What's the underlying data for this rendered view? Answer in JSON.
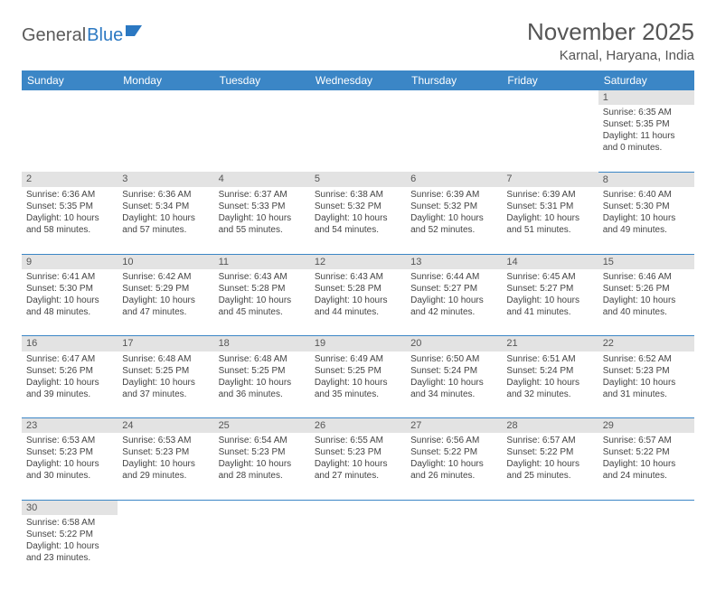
{
  "logo": {
    "part1": "General",
    "part2": "Blue"
  },
  "title": "November 2025",
  "location": "Karnal, Haryana, India",
  "colors": {
    "header_bg": "#3b86c6",
    "header_text": "#ffffff",
    "daynum_bg": "#e3e3e3",
    "cell_border": "#3b86c6",
    "text": "#444444",
    "logo_gray": "#5a5a5a",
    "logo_blue": "#2b78c2"
  },
  "typography": {
    "title_fontsize": 26,
    "location_fontsize": 15,
    "dayheader_fontsize": 12,
    "cell_fontsize": 10
  },
  "day_headers": [
    "Sunday",
    "Monday",
    "Tuesday",
    "Wednesday",
    "Thursday",
    "Friday",
    "Saturday"
  ],
  "weeks": [
    [
      null,
      null,
      null,
      null,
      null,
      null,
      {
        "n": "1",
        "sr": "Sunrise: 6:35 AM",
        "ss": "Sunset: 5:35 PM",
        "dl": "Daylight: 11 hours and 0 minutes."
      }
    ],
    [
      {
        "n": "2",
        "sr": "Sunrise: 6:36 AM",
        "ss": "Sunset: 5:35 PM",
        "dl": "Daylight: 10 hours and 58 minutes."
      },
      {
        "n": "3",
        "sr": "Sunrise: 6:36 AM",
        "ss": "Sunset: 5:34 PM",
        "dl": "Daylight: 10 hours and 57 minutes."
      },
      {
        "n": "4",
        "sr": "Sunrise: 6:37 AM",
        "ss": "Sunset: 5:33 PM",
        "dl": "Daylight: 10 hours and 55 minutes."
      },
      {
        "n": "5",
        "sr": "Sunrise: 6:38 AM",
        "ss": "Sunset: 5:32 PM",
        "dl": "Daylight: 10 hours and 54 minutes."
      },
      {
        "n": "6",
        "sr": "Sunrise: 6:39 AM",
        "ss": "Sunset: 5:32 PM",
        "dl": "Daylight: 10 hours and 52 minutes."
      },
      {
        "n": "7",
        "sr": "Sunrise: 6:39 AM",
        "ss": "Sunset: 5:31 PM",
        "dl": "Daylight: 10 hours and 51 minutes."
      },
      {
        "n": "8",
        "sr": "Sunrise: 6:40 AM",
        "ss": "Sunset: 5:30 PM",
        "dl": "Daylight: 10 hours and 49 minutes."
      }
    ],
    [
      {
        "n": "9",
        "sr": "Sunrise: 6:41 AM",
        "ss": "Sunset: 5:30 PM",
        "dl": "Daylight: 10 hours and 48 minutes."
      },
      {
        "n": "10",
        "sr": "Sunrise: 6:42 AM",
        "ss": "Sunset: 5:29 PM",
        "dl": "Daylight: 10 hours and 47 minutes."
      },
      {
        "n": "11",
        "sr": "Sunrise: 6:43 AM",
        "ss": "Sunset: 5:28 PM",
        "dl": "Daylight: 10 hours and 45 minutes."
      },
      {
        "n": "12",
        "sr": "Sunrise: 6:43 AM",
        "ss": "Sunset: 5:28 PM",
        "dl": "Daylight: 10 hours and 44 minutes."
      },
      {
        "n": "13",
        "sr": "Sunrise: 6:44 AM",
        "ss": "Sunset: 5:27 PM",
        "dl": "Daylight: 10 hours and 42 minutes."
      },
      {
        "n": "14",
        "sr": "Sunrise: 6:45 AM",
        "ss": "Sunset: 5:27 PM",
        "dl": "Daylight: 10 hours and 41 minutes."
      },
      {
        "n": "15",
        "sr": "Sunrise: 6:46 AM",
        "ss": "Sunset: 5:26 PM",
        "dl": "Daylight: 10 hours and 40 minutes."
      }
    ],
    [
      {
        "n": "16",
        "sr": "Sunrise: 6:47 AM",
        "ss": "Sunset: 5:26 PM",
        "dl": "Daylight: 10 hours and 39 minutes."
      },
      {
        "n": "17",
        "sr": "Sunrise: 6:48 AM",
        "ss": "Sunset: 5:25 PM",
        "dl": "Daylight: 10 hours and 37 minutes."
      },
      {
        "n": "18",
        "sr": "Sunrise: 6:48 AM",
        "ss": "Sunset: 5:25 PM",
        "dl": "Daylight: 10 hours and 36 minutes."
      },
      {
        "n": "19",
        "sr": "Sunrise: 6:49 AM",
        "ss": "Sunset: 5:25 PM",
        "dl": "Daylight: 10 hours and 35 minutes."
      },
      {
        "n": "20",
        "sr": "Sunrise: 6:50 AM",
        "ss": "Sunset: 5:24 PM",
        "dl": "Daylight: 10 hours and 34 minutes."
      },
      {
        "n": "21",
        "sr": "Sunrise: 6:51 AM",
        "ss": "Sunset: 5:24 PM",
        "dl": "Daylight: 10 hours and 32 minutes."
      },
      {
        "n": "22",
        "sr": "Sunrise: 6:52 AM",
        "ss": "Sunset: 5:23 PM",
        "dl": "Daylight: 10 hours and 31 minutes."
      }
    ],
    [
      {
        "n": "23",
        "sr": "Sunrise: 6:53 AM",
        "ss": "Sunset: 5:23 PM",
        "dl": "Daylight: 10 hours and 30 minutes."
      },
      {
        "n": "24",
        "sr": "Sunrise: 6:53 AM",
        "ss": "Sunset: 5:23 PM",
        "dl": "Daylight: 10 hours and 29 minutes."
      },
      {
        "n": "25",
        "sr": "Sunrise: 6:54 AM",
        "ss": "Sunset: 5:23 PM",
        "dl": "Daylight: 10 hours and 28 minutes."
      },
      {
        "n": "26",
        "sr": "Sunrise: 6:55 AM",
        "ss": "Sunset: 5:23 PM",
        "dl": "Daylight: 10 hours and 27 minutes."
      },
      {
        "n": "27",
        "sr": "Sunrise: 6:56 AM",
        "ss": "Sunset: 5:22 PM",
        "dl": "Daylight: 10 hours and 26 minutes."
      },
      {
        "n": "28",
        "sr": "Sunrise: 6:57 AM",
        "ss": "Sunset: 5:22 PM",
        "dl": "Daylight: 10 hours and 25 minutes."
      },
      {
        "n": "29",
        "sr": "Sunrise: 6:57 AM",
        "ss": "Sunset: 5:22 PM",
        "dl": "Daylight: 10 hours and 24 minutes."
      }
    ],
    [
      {
        "n": "30",
        "sr": "Sunrise: 6:58 AM",
        "ss": "Sunset: 5:22 PM",
        "dl": "Daylight: 10 hours and 23 minutes."
      },
      null,
      null,
      null,
      null,
      null,
      null
    ]
  ]
}
